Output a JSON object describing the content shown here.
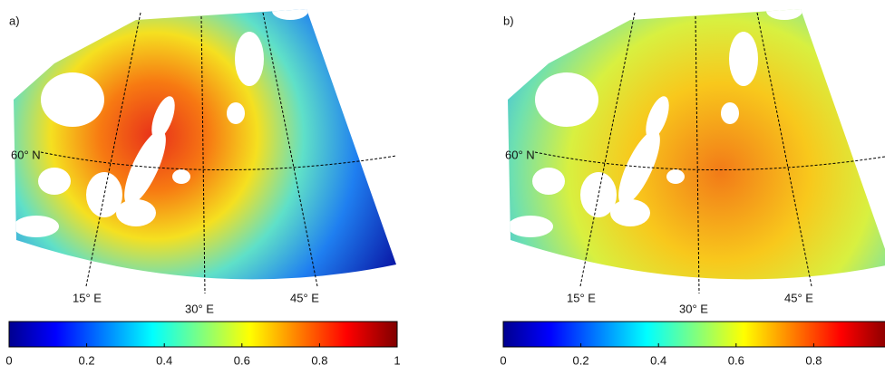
{
  "panels": [
    {
      "label": "a)",
      "parallel_label": "60° N",
      "meridian_labels": [
        "15° E",
        "30° E",
        "45° E"
      ],
      "colorbar": {
        "lim": [
          0,
          1
        ],
        "ticks": [
          0,
          0.2,
          0.4,
          0.6,
          0.8,
          1
        ]
      }
    },
    {
      "label": "b)",
      "parallel_label": "60° N",
      "meridian_labels": [
        "15° E",
        "30° E",
        "45° E"
      ],
      "colorbar": {
        "lim": [
          0,
          1
        ],
        "ticks": [
          0,
          0.2,
          0.4,
          0.6,
          0.8
        ]
      }
    }
  ]
}
